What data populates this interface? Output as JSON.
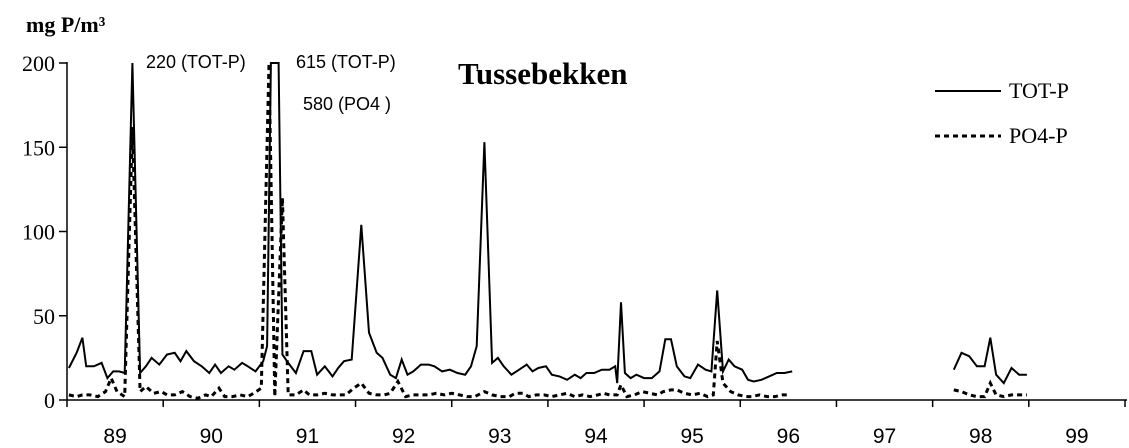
{
  "chart_data": {
    "type": "line",
    "title": "Tussebekken",
    "ylabel": "mg P/m³",
    "ylim": [
      0,
      200
    ],
    "yticks": [
      0,
      50,
      100,
      150,
      200
    ],
    "xlim": [
      1988.5,
      1999.5
    ],
    "xtick_labels": [
      {
        "label": "89",
        "year": 1989
      },
      {
        "label": "90",
        "year": 1990
      },
      {
        "label": "91",
        "year": 1991
      },
      {
        "label": "92",
        "year": 1992
      },
      {
        "label": "93",
        "year": 1993
      },
      {
        "label": "94",
        "year": 1994
      },
      {
        "label": "95",
        "year": 1995
      },
      {
        "label": "96",
        "year": 1996
      },
      {
        "label": "97",
        "year": 1997
      },
      {
        "label": "98",
        "year": 1998
      },
      {
        "label": "99",
        "year": 1999
      }
    ],
    "legend_position": "top-right",
    "annotations": [
      {
        "text": "220 (TOT-P)",
        "x": 1989.0
      },
      {
        "text": "615 (TOT-P)",
        "x": 1990.9
      },
      {
        "text": "580 (PO4 )",
        "x": 1990.9
      }
    ],
    "series": [
      {
        "name": "TOT-P",
        "style": "solid",
        "color": "#000000",
        "points": [
          [
            1988.52,
            19
          ],
          [
            1988.6,
            28
          ],
          [
            1988.66,
            37
          ],
          [
            1988.7,
            20
          ],
          [
            1988.78,
            20
          ],
          [
            1988.86,
            22
          ],
          [
            1988.92,
            13
          ],
          [
            1988.98,
            17
          ],
          [
            1989.04,
            17
          ],
          [
            1989.1,
            16
          ],
          [
            1989.18,
            200
          ],
          [
            1989.26,
            16
          ],
          [
            1989.32,
            20
          ],
          [
            1989.38,
            25
          ],
          [
            1989.46,
            21
          ],
          [
            1989.54,
            27
          ],
          [
            1989.62,
            28
          ],
          [
            1989.68,
            23
          ],
          [
            1989.74,
            29
          ],
          [
            1989.82,
            23
          ],
          [
            1989.9,
            20
          ],
          [
            1989.98,
            16
          ],
          [
            1990.04,
            21
          ],
          [
            1990.1,
            16
          ],
          [
            1990.18,
            20
          ],
          [
            1990.24,
            18
          ],
          [
            1990.32,
            22
          ],
          [
            1990.38,
            20
          ],
          [
            1990.46,
            17
          ],
          [
            1990.54,
            23
          ],
          [
            1990.58,
            32
          ],
          [
            1990.62,
            200
          ],
          [
            1990.7,
            200
          ],
          [
            1990.74,
            27
          ],
          [
            1990.8,
            22
          ],
          [
            1990.88,
            16
          ],
          [
            1990.96,
            29
          ],
          [
            1991.04,
            29
          ],
          [
            1991.1,
            15
          ],
          [
            1991.18,
            20
          ],
          [
            1991.26,
            14
          ],
          [
            1991.32,
            19
          ],
          [
            1991.38,
            23
          ],
          [
            1991.46,
            24
          ],
          [
            1991.56,
            104
          ],
          [
            1991.64,
            40
          ],
          [
            1991.72,
            28
          ],
          [
            1991.78,
            25
          ],
          [
            1991.86,
            15
          ],
          [
            1991.92,
            13
          ],
          [
            1991.98,
            24
          ],
          [
            1992.04,
            15
          ],
          [
            1992.1,
            17
          ],
          [
            1992.18,
            21
          ],
          [
            1992.26,
            21
          ],
          [
            1992.32,
            20
          ],
          [
            1992.4,
            17
          ],
          [
            1992.48,
            18
          ],
          [
            1992.56,
            16
          ],
          [
            1992.64,
            15
          ],
          [
            1992.7,
            20
          ],
          [
            1992.76,
            32
          ],
          [
            1992.84,
            153
          ],
          [
            1992.92,
            22
          ],
          [
            1992.98,
            25
          ],
          [
            1993.04,
            20
          ],
          [
            1993.12,
            15
          ],
          [
            1993.2,
            18
          ],
          [
            1993.28,
            21
          ],
          [
            1993.34,
            17
          ],
          [
            1993.4,
            19
          ],
          [
            1993.48,
            20
          ],
          [
            1993.54,
            15
          ],
          [
            1993.62,
            14
          ],
          [
            1993.7,
            12
          ],
          [
            1993.78,
            15
          ],
          [
            1993.84,
            13
          ],
          [
            1993.9,
            16
          ],
          [
            1993.98,
            16
          ],
          [
            1994.06,
            18
          ],
          [
            1994.14,
            18
          ],
          [
            1994.2,
            20
          ],
          [
            1994.22,
            10
          ],
          [
            1994.26,
            58
          ],
          [
            1994.3,
            16
          ],
          [
            1994.36,
            13
          ],
          [
            1994.42,
            15
          ],
          [
            1994.5,
            13
          ],
          [
            1994.58,
            13
          ],
          [
            1994.66,
            17
          ],
          [
            1994.72,
            36
          ],
          [
            1994.78,
            36
          ],
          [
            1994.84,
            20
          ],
          [
            1994.92,
            14
          ],
          [
            1994.98,
            13
          ],
          [
            1995.06,
            21
          ],
          [
            1995.14,
            18
          ],
          [
            1995.2,
            17
          ],
          [
            1995.26,
            65
          ],
          [
            1995.32,
            17
          ],
          [
            1995.38,
            24
          ],
          [
            1995.44,
            20
          ],
          [
            1995.52,
            18
          ],
          [
            1995.58,
            12
          ],
          [
            1995.64,
            11
          ],
          [
            1995.72,
            12
          ],
          [
            1995.8,
            14
          ],
          [
            1995.88,
            16
          ],
          [
            1995.96,
            16
          ],
          [
            1996.04,
            17
          ],
          null,
          [
            1997.72,
            18
          ],
          [
            1997.8,
            28
          ],
          [
            1997.88,
            26
          ],
          [
            1997.96,
            20
          ],
          [
            1998.04,
            20
          ],
          [
            1998.1,
            37
          ],
          [
            1998.16,
            15
          ],
          [
            1998.24,
            10
          ],
          [
            1998.32,
            19
          ],
          [
            1998.4,
            15
          ],
          [
            1998.48,
            15
          ]
        ]
      },
      {
        "name": "PO4-P",
        "style": "dashed",
        "color": "#000000",
        "points": [
          [
            1988.52,
            3
          ],
          [
            1988.6,
            2
          ],
          [
            1988.66,
            3
          ],
          [
            1988.74,
            3
          ],
          [
            1988.82,
            2
          ],
          [
            1988.9,
            5
          ],
          [
            1988.96,
            13
          ],
          [
            1989.02,
            5
          ],
          [
            1989.1,
            2
          ],
          [
            1989.18,
            162
          ],
          [
            1989.26,
            5
          ],
          [
            1989.32,
            8
          ],
          [
            1989.4,
            4
          ],
          [
            1989.48,
            5
          ],
          [
            1989.54,
            3
          ],
          [
            1989.62,
            3
          ],
          [
            1989.7,
            5
          ],
          [
            1989.78,
            2
          ],
          [
            1989.86,
            1
          ],
          [
            1989.94,
            3
          ],
          [
            1990.0,
            2
          ],
          [
            1990.08,
            7
          ],
          [
            1990.14,
            2
          ],
          [
            1990.22,
            2
          ],
          [
            1990.3,
            3
          ],
          [
            1990.38,
            2
          ],
          [
            1990.44,
            4
          ],
          [
            1990.52,
            7
          ],
          [
            1990.6,
            200
          ],
          [
            1990.66,
            2
          ],
          [
            1990.74,
            120
          ],
          [
            1990.8,
            3
          ],
          [
            1990.88,
            3
          ],
          [
            1990.96,
            6
          ],
          [
            1991.02,
            3
          ],
          [
            1991.1,
            3
          ],
          [
            1991.18,
            4
          ],
          [
            1991.26,
            3
          ],
          [
            1991.32,
            3
          ],
          [
            1991.4,
            3
          ],
          [
            1991.48,
            7
          ],
          [
            1991.56,
            10
          ],
          [
            1991.64,
            4
          ],
          [
            1991.72,
            3
          ],
          [
            1991.8,
            3
          ],
          [
            1991.86,
            4
          ],
          [
            1991.94,
            11
          ],
          [
            1992.02,
            2
          ],
          [
            1992.1,
            3
          ],
          [
            1992.18,
            3
          ],
          [
            1992.26,
            3
          ],
          [
            1992.34,
            4
          ],
          [
            1992.42,
            3
          ],
          [
            1992.5,
            4
          ],
          [
            1992.58,
            3
          ],
          [
            1992.66,
            2
          ],
          [
            1992.74,
            2
          ],
          [
            1992.84,
            5
          ],
          [
            1992.92,
            3
          ],
          [
            1993.0,
            2
          ],
          [
            1993.1,
            2
          ],
          [
            1993.16,
            4
          ],
          [
            1993.24,
            4
          ],
          [
            1993.3,
            2
          ],
          [
            1993.38,
            3
          ],
          [
            1993.46,
            3
          ],
          [
            1993.54,
            2
          ],
          [
            1993.62,
            3
          ],
          [
            1993.7,
            4
          ],
          [
            1993.78,
            2
          ],
          [
            1993.86,
            3
          ],
          [
            1993.94,
            2
          ],
          [
            1994.02,
            3
          ],
          [
            1994.08,
            4
          ],
          [
            1994.14,
            3
          ],
          [
            1994.22,
            3
          ],
          [
            1994.26,
            9
          ],
          [
            1994.32,
            2
          ],
          [
            1994.4,
            3
          ],
          [
            1994.48,
            5
          ],
          [
            1994.56,
            4
          ],
          [
            1994.64,
            3
          ],
          [
            1994.7,
            5
          ],
          [
            1994.78,
            6
          ],
          [
            1994.84,
            6
          ],
          [
            1994.92,
            4
          ],
          [
            1995.0,
            3
          ],
          [
            1995.08,
            4
          ],
          [
            1995.16,
            2
          ],
          [
            1995.22,
            3
          ],
          [
            1995.26,
            35
          ],
          [
            1995.32,
            10
          ],
          [
            1995.4,
            5
          ],
          [
            1995.48,
            3
          ],
          [
            1995.56,
            2
          ],
          [
            1995.62,
            2
          ],
          [
            1995.7,
            3
          ],
          [
            1995.78,
            2
          ],
          [
            1995.86,
            2
          ],
          [
            1995.94,
            3
          ],
          [
            1996.02,
            3
          ],
          null,
          [
            1997.72,
            6
          ],
          [
            1997.8,
            5
          ],
          [
            1997.88,
            3
          ],
          [
            1997.96,
            2
          ],
          [
            1998.04,
            2
          ],
          [
            1998.1,
            10
          ],
          [
            1998.16,
            3
          ],
          [
            1998.24,
            2
          ],
          [
            1998.32,
            3
          ],
          [
            1998.4,
            3
          ],
          [
            1998.48,
            3
          ]
        ]
      }
    ]
  }
}
